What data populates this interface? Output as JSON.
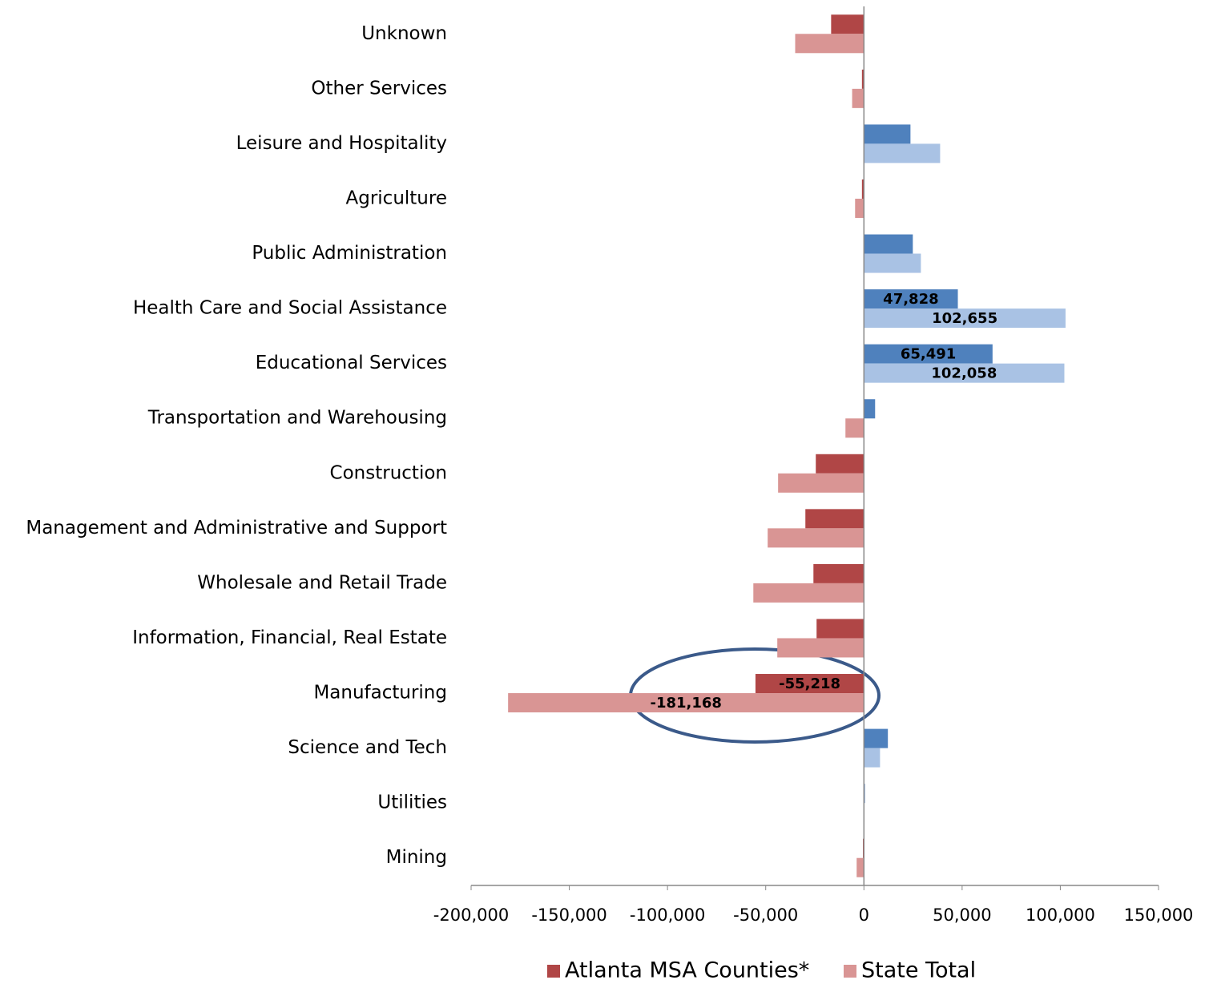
{
  "chart_data": {
    "type": "hbar",
    "categories": [
      "Unknown",
      "Other Services",
      "Leisure and Hospitality",
      "Agriculture",
      "Public Administration",
      "Health Care and Social Assistance",
      "Educational Services",
      "Transportation and Warehousing",
      "Construction",
      "Management and Administrative and Support",
      "Wholesale and Retail Trade",
      "Information, Financial, Real Estate",
      "Manufacturing",
      "Science and Tech",
      "Utilities",
      "Mining"
    ],
    "series": [
      {
        "name": "Atlanta MSA Counties*",
        "color": "#b04646",
        "positive_color": "#4f81bd",
        "values": [
          -16700,
          -1000,
          23700,
          -1000,
          24900,
          47828,
          65491,
          5700,
          -24500,
          -29800,
          -25700,
          -24100,
          -55218,
          12200,
          500,
          -500
        ],
        "value_labels": [
          null,
          null,
          null,
          null,
          null,
          "47,828",
          "65,491",
          null,
          null,
          null,
          null,
          null,
          "-55,218",
          null,
          null,
          null
        ]
      },
      {
        "name": "State Total",
        "color": "#d99594",
        "positive_color": "#a9c2e4",
        "values": [
          -35000,
          -6000,
          38800,
          -4500,
          29000,
          102655,
          102058,
          -9400,
          -43700,
          -49000,
          -56300,
          -44100,
          -181168,
          8200,
          300,
          -3700
        ],
        "value_labels": [
          null,
          null,
          null,
          null,
          null,
          "102,655",
          "102,058",
          null,
          null,
          null,
          null,
          null,
          "-181,168",
          null,
          null,
          null
        ]
      }
    ],
    "xlim": [
      -200000,
      150000
    ],
    "xticks": [
      {
        "value": -200000,
        "label": "-200,000"
      },
      {
        "value": -150000,
        "label": "-150,000"
      },
      {
        "value": -100000,
        "label": "-100,000"
      },
      {
        "value": -50000,
        "label": "-50,000"
      },
      0,
      {
        "value": 50000,
        "label": "50,000"
      },
      {
        "value": 100000,
        "label": "100,000"
      },
      {
        "value": 150000,
        "label": "150,000"
      }
    ],
    "legend": "bottom"
  }
}
